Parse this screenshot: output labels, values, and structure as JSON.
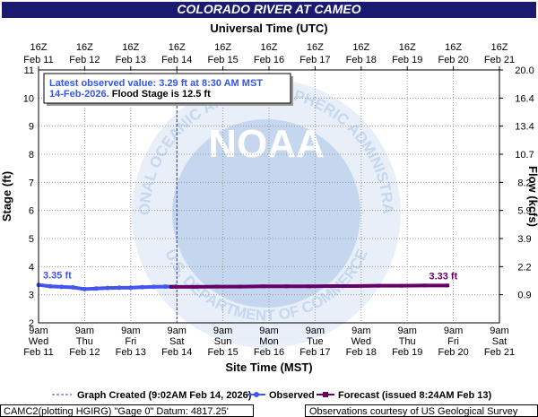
{
  "chart_data": {
    "type": "line",
    "title": "COLORADO RIVER AT CAMEO",
    "x_label": "Site Time (MST)",
    "x2_label": "Universal Time (UTC)",
    "y_label": "Stage (ft)",
    "y2_label": "Flow (kcfs)",
    "xlim": [
      "Feb 11 09:00",
      "Feb 21 09:00"
    ],
    "xticks": [
      {
        "value": "Feb 11 09:00",
        "label": [
          "9am",
          "Wed",
          "Feb 11"
        ]
      },
      {
        "value": "Feb 12 09:00",
        "label": [
          "9am",
          "Thu",
          "Feb 12"
        ]
      },
      {
        "value": "Feb 13 09:00",
        "label": [
          "9am",
          "Fri",
          "Feb 13"
        ]
      },
      {
        "value": "Feb 14 09:00",
        "label": [
          "9am",
          "Sat",
          "Feb 14"
        ]
      },
      {
        "value": "Feb 15 09:00",
        "label": [
          "9am",
          "Sun",
          "Feb 15"
        ]
      },
      {
        "value": "Feb 16 09:00",
        "label": [
          "9am",
          "Mon",
          "Feb 16"
        ]
      },
      {
        "value": "Feb 17 09:00",
        "label": [
          "9am",
          "Tue",
          "Feb 17"
        ]
      },
      {
        "value": "Feb 18 09:00",
        "label": [
          "9am",
          "Wed",
          "Feb 18"
        ]
      },
      {
        "value": "Feb 19 09:00",
        "label": [
          "9am",
          "Thu",
          "Feb 19"
        ]
      },
      {
        "value": "Feb 20 09:00",
        "label": [
          "9am",
          "Fri",
          "Feb 20"
        ]
      },
      {
        "value": "Feb 21 09:00",
        "label": [
          "9am",
          "Sat",
          "Feb 21"
        ]
      }
    ],
    "x2ticks": [
      {
        "value": "Feb 11 09:00",
        "label": [
          "16Z",
          "Feb 11"
        ]
      },
      {
        "value": "Feb 12 09:00",
        "label": [
          "16Z",
          "Feb 12"
        ]
      },
      {
        "value": "Feb 13 09:00",
        "label": [
          "16Z",
          "Feb 13"
        ]
      },
      {
        "value": "Feb 14 09:00",
        "label": [
          "16Z",
          "Feb 14"
        ]
      },
      {
        "value": "Feb 15 09:00",
        "label": [
          "16Z",
          "Feb 15"
        ]
      },
      {
        "value": "Feb 16 09:00",
        "label": [
          "16Z",
          "Feb 16"
        ]
      },
      {
        "value": "Feb 17 09:00",
        "label": [
          "16Z",
          "Feb 17"
        ]
      },
      {
        "value": "Feb 18 09:00",
        "label": [
          "16Z",
          "Feb 18"
        ]
      },
      {
        "value": "Feb 19 09:00",
        "label": [
          "16Z",
          "Feb 19"
        ]
      },
      {
        "value": "Feb 20 09:00",
        "label": [
          "16Z",
          "Feb 20"
        ]
      },
      {
        "value": "Feb 21 09:00",
        "label": [
          "16Z",
          "Feb 21"
        ]
      }
    ],
    "ylim": [
      2,
      11
    ],
    "yticks": [
      2,
      3,
      4,
      5,
      6,
      7,
      8,
      9,
      10,
      11
    ],
    "y2ticks": [
      {
        "value": 0.9,
        "label": "0.9",
        "stage": 3
      },
      {
        "value": 2.2,
        "label": "2.2",
        "stage": 4
      },
      {
        "value": 3.9,
        "label": "3.9",
        "stage": 5
      },
      {
        "value": 5.9,
        "label": "5.9",
        "stage": 6
      },
      {
        "value": 8.2,
        "label": "8.2",
        "stage": 7
      },
      {
        "value": 10.7,
        "label": "10.7",
        "stage": 8
      },
      {
        "value": 13.4,
        "label": "13.4",
        "stage": 9
      },
      {
        "value": 16.4,
        "label": "16.4",
        "stage": 10
      },
      {
        "value": 20.0,
        "label": "20.0",
        "stage": 11
      }
    ],
    "grid": true,
    "created_x": "Feb 14 09:02",
    "created_color": "#3333cc",
    "series": [
      {
        "name": "Observed",
        "color": "#4455ee",
        "x": [
          "Feb 11 09:00",
          "Feb 11 15:00",
          "Feb 11 21:00",
          "Feb 12 03:00",
          "Feb 12 09:00",
          "Feb 12 15:00",
          "Feb 12 21:00",
          "Feb 13 03:00",
          "Feb 13 09:00",
          "Feb 13 15:00",
          "Feb 13 21:00",
          "Feb 14 03:00",
          "Feb 14 08:30"
        ],
        "values": [
          3.35,
          3.3,
          3.28,
          3.26,
          3.2,
          3.22,
          3.24,
          3.25,
          3.25,
          3.27,
          3.28,
          3.29,
          3.29
        ],
        "value_labels": [
          "3.35 ft",
          null,
          null,
          null,
          null,
          null,
          null,
          null,
          null,
          null,
          null,
          null,
          null
        ]
      },
      {
        "name": "Forecast (issued 8:24AM Feb 13)",
        "color": "#660066",
        "x": [
          "Feb 14 06:00",
          "Feb 14 18:00",
          "Feb 15 06:00",
          "Feb 15 18:00",
          "Feb 16 06:00",
          "Feb 16 18:00",
          "Feb 17 06:00",
          "Feb 17 18:00",
          "Feb 18 06:00",
          "Feb 18 18:00",
          "Feb 19 06:00",
          "Feb 19 18:00",
          "Feb 20 06:00"
        ],
        "values": [
          3.28,
          3.28,
          3.29,
          3.29,
          3.3,
          3.3,
          3.3,
          3.31,
          3.31,
          3.32,
          3.32,
          3.33,
          3.33
        ],
        "value_labels": [
          null,
          null,
          null,
          null,
          null,
          null,
          null,
          null,
          null,
          null,
          null,
          "3.33 ft",
          null
        ]
      }
    ],
    "legend_created": "Graph Created (9:02AM Feb 14, 2026)",
    "info_line1": "Latest observed value: 3.29 ft at 8:30 AM MST",
    "info_date": "14-Feb-2026.",
    "info_flood": "Flood Stage is 12.5 ft",
    "footer_left": "CAMC2(plotting HGIRG) \"Gage 0\" Datum: 4817.25'",
    "footer_right": "Observations courtesy of US Geological Survey",
    "watermark": {
      "center": "NOAA",
      "top": "NATIONAL OCEANIC AND ATMOSPHERIC ADMINISTRATION",
      "bottom": "U.S. DEPARTMENT OF COMMERCE"
    }
  }
}
